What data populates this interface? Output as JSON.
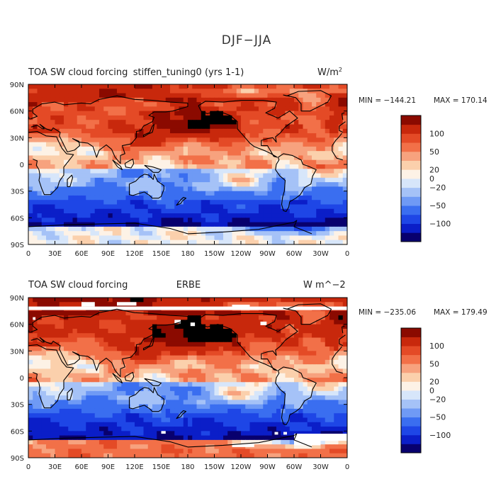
{
  "figure_title": "DJF−JJA",
  "palette": [
    "#08006e",
    "#0b1ec8",
    "#1e46e6",
    "#3a6ef0",
    "#6f9af5",
    "#a5c2f7",
    "#d7e6fa",
    "#fdf2e6",
    "#fbd0ac",
    "#f7a27e",
    "#f27048",
    "#e44a26",
    "#c8280c",
    "#8b0a00"
  ],
  "chart_data": [
    {
      "type": "heatmap",
      "panel": "top",
      "title_left": "TOA SW cloud forcing",
      "title_center": "stiffen_tuning0 (yrs 1-1)",
      "units": "W/m",
      "units_sup": "2",
      "min_label": "MIN = −144.21",
      "max_label": "MAX = 170.14",
      "min": -144.21,
      "max": 170.14,
      "xlabels": [
        "0",
        "30E",
        "60E",
        "90E",
        "120E",
        "150E",
        "180",
        "150W",
        "120W",
        "90W",
        "60W",
        "30W",
        "0"
      ],
      "ylabels": [
        "90N",
        "60N",
        "30N",
        "0",
        "30S",
        "60S",
        "90S"
      ],
      "colorbar_ticks": [
        "100",
        "50",
        "20",
        "0",
        "−20",
        "−50",
        "−100"
      ],
      "colorbar_levels": [
        -200,
        -120,
        -100,
        -80,
        -50,
        -40,
        -20,
        -10,
        0,
        10,
        20,
        40,
        50,
        80,
        100,
        120,
        200
      ]
    },
    {
      "type": "heatmap",
      "panel": "bottom",
      "title_left": "TOA SW cloud forcing",
      "title_center": "ERBE",
      "units": "W m^−2",
      "units_sup": "",
      "min_label": "MIN = −235.06",
      "max_label": "MAX = 179.49",
      "min": -235.06,
      "max": 179.49,
      "xlabels": [
        "0",
        "30E",
        "60E",
        "90E",
        "120E",
        "150E",
        "180",
        "150W",
        "120W",
        "90W",
        "60W",
        "30W",
        "0"
      ],
      "ylabels": [
        "90N",
        "60N",
        "30N",
        "0",
        "30S",
        "60S",
        "90S"
      ],
      "colorbar_ticks": [
        "100",
        "50",
        "20",
        "0",
        "−20",
        "−50",
        "−100"
      ],
      "colorbar_levels": [
        -200,
        -120,
        -100,
        -80,
        -50,
        -40,
        -20,
        -10,
        0,
        10,
        20,
        40,
        50,
        80,
        100,
        120,
        200
      ]
    }
  ]
}
